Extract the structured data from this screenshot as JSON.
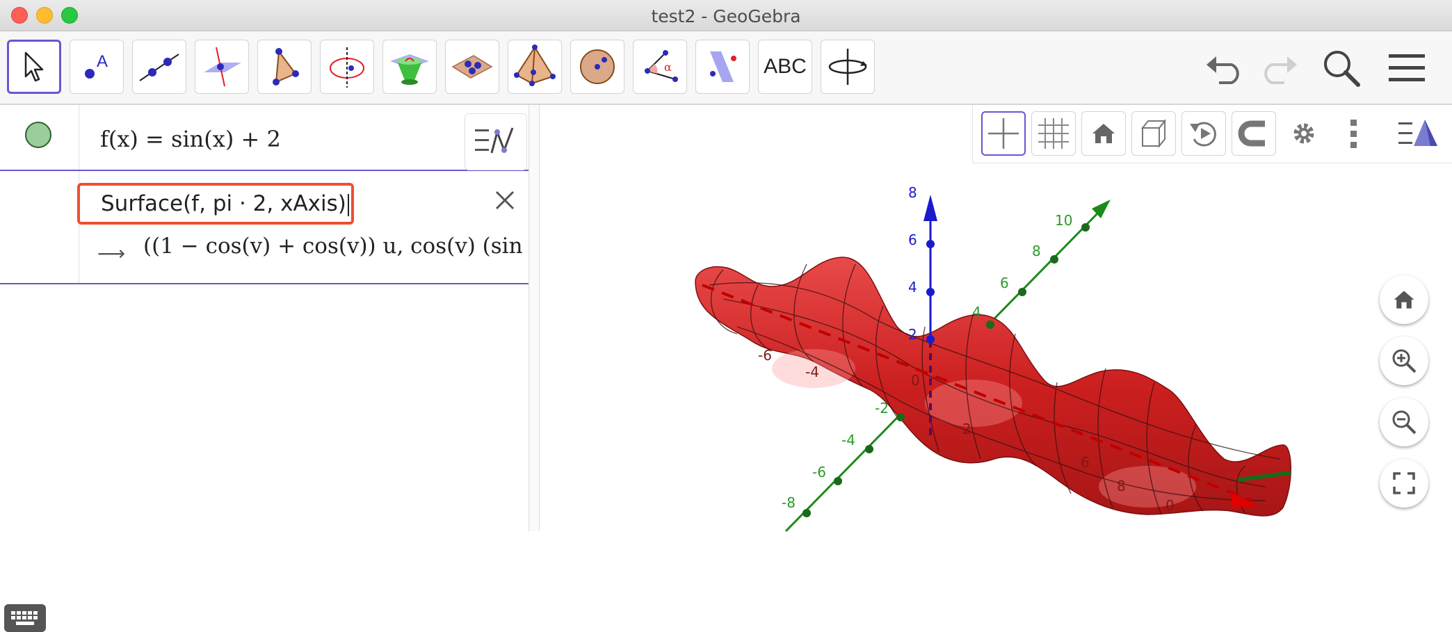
{
  "window": {
    "title": "test2 - GeoGebra"
  },
  "toolbar": {
    "tools": [
      {
        "icon": "move-arrow-icon",
        "active": true
      },
      {
        "icon": "point-icon"
      },
      {
        "icon": "line-icon"
      },
      {
        "icon": "perpendicular-line-icon"
      },
      {
        "icon": "polygon-icon"
      },
      {
        "icon": "circle-axis-icon"
      },
      {
        "icon": "cone-icon"
      },
      {
        "icon": "plane-icon"
      },
      {
        "icon": "pyramid-icon"
      },
      {
        "icon": "sphere-icon"
      },
      {
        "icon": "angle-icon"
      },
      {
        "icon": "reflect-plane-icon"
      },
      {
        "icon": "text-tool-icon",
        "label": "ABC"
      },
      {
        "icon": "rotate-view-icon"
      }
    ],
    "undo_icon": "undo-icon",
    "redo_icon": "redo-icon",
    "search_icon": "search-icon",
    "menu_icon": "hamburger-menu-icon"
  },
  "algebra": {
    "row1": {
      "expression": "f(x)  =  sin(x) + 2"
    },
    "row2": {
      "input": "Surface(f, pi · 2, xAxis)",
      "output": "((1 − cos(v) + cos(v)) u, cos(v) (sin"
    }
  },
  "graphics3d": {
    "toolbar": [
      "axes-icon",
      "grid-icon",
      "home-icon",
      "cube-view-icon",
      "rotate-icon",
      "magnet-icon",
      "settings-icon",
      "more-vertical-icon",
      "view-menu-icon"
    ],
    "zaxis_ticks": [
      "8",
      "6",
      "4",
      "2",
      "0"
    ],
    "yaxis_ticks": [
      "10",
      "8",
      "6",
      "4",
      "-2",
      "-4",
      "-6",
      "-8"
    ],
    "xaxis_ticks": [
      "-6",
      "-4",
      "2",
      "6",
      "8",
      "0"
    ],
    "colors": {
      "surface": "#d62020",
      "zaxis": "#1a1acc",
      "yaxis": "#1a8a1a",
      "xaxis": "#c00000",
      "accent": "#6557d2",
      "input_border": "#f04d32"
    },
    "nav": [
      "home-icon",
      "zoom-in-icon",
      "zoom-out-icon",
      "fullscreen-icon"
    ]
  }
}
